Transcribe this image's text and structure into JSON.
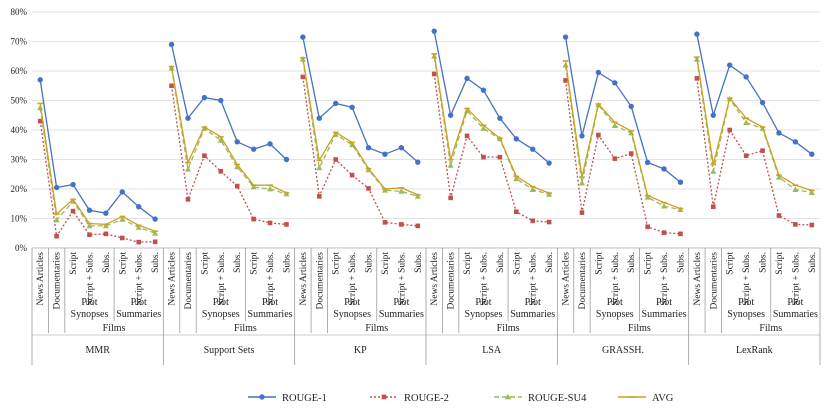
{
  "chart_data": {
    "type": "line",
    "title": "",
    "xlabel": "",
    "ylabel": "",
    "ylim": [
      0,
      80
    ],
    "yticks": [
      "0%",
      "10%",
      "20%",
      "30%",
      "40%",
      "50%",
      "60%",
      "70%",
      "80%"
    ],
    "grid": true,
    "legend_position": "bottom",
    "methods": [
      "MMR",
      "Support Sets",
      "KP",
      "LSA",
      "GRASSH.",
      "LexRank"
    ],
    "films_label": "Films",
    "categories": [
      {
        "top": "News Articles",
        "sub": [
          ""
        ]
      },
      {
        "top": "Documentaries",
        "sub": [
          ""
        ]
      },
      {
        "top": "Plot Synopses",
        "sub": [
          "Script",
          "Script + Subs.",
          "Subs."
        ]
      },
      {
        "top": "Plot Summaries",
        "sub": [
          "Script",
          "Script + Subs.",
          "Subs."
        ]
      }
    ],
    "series": [
      {
        "name": "ROUGE-1",
        "color": "#4472c4",
        "values": [
          [
            57,
            20.5,
            21.5,
            12.8,
            11.8,
            19,
            14,
            9.8
          ],
          [
            69,
            44,
            51,
            50,
            36,
            33.5,
            35.3,
            30
          ],
          [
            71.5,
            44,
            49,
            47.7,
            34,
            31.8,
            34,
            29.1
          ],
          [
            73.5,
            45,
            57.5,
            53.5,
            44,
            37,
            33.5,
            28.8
          ],
          [
            71.5,
            38,
            59.5,
            56,
            48,
            29,
            26.8,
            22.3
          ],
          [
            72.5,
            45,
            62,
            58,
            49.3,
            39,
            36,
            31.8
          ]
        ]
      },
      {
        "name": "ROUGE-2",
        "color": "#c0504d",
        "values": [
          [
            43,
            4,
            12.5,
            4.5,
            4.8,
            3.4,
            2,
            2.1
          ],
          [
            55,
            16.5,
            31.3,
            26,
            21,
            9.8,
            8.5,
            8
          ],
          [
            58,
            17.5,
            30,
            24.7,
            20.2,
            8.7,
            8,
            7.5
          ],
          [
            59,
            17,
            38,
            30.8,
            30.8,
            12.3,
            9.2,
            8.8
          ],
          [
            56.8,
            12,
            38.3,
            30.3,
            32,
            7.2,
            5.2,
            4.8
          ],
          [
            57.5,
            14,
            40,
            31.3,
            33,
            11,
            8,
            7.8
          ]
        ]
      },
      {
        "name": "ROUGE-SU4",
        "color": "#9bbb59",
        "values": [
          [
            47.5,
            9.5,
            15.8,
            7.5,
            7.5,
            9.7,
            7,
            5
          ],
          [
            61,
            26.7,
            40.5,
            36.5,
            27.5,
            20.7,
            20,
            18.3
          ],
          [
            64,
            27.2,
            38.5,
            35,
            26.5,
            19.6,
            19.2,
            17.5
          ],
          [
            65,
            28,
            46.5,
            40.5,
            37,
            23.5,
            19.8,
            18.2
          ],
          [
            62,
            22,
            48.5,
            41.5,
            39,
            17.2,
            14.2,
            13
          ],
          [
            64,
            26,
            50.5,
            42.5,
            40.5,
            24,
            19.8,
            18.8
          ]
        ]
      },
      {
        "name": "AVG",
        "color": "#c9a227",
        "values": [
          [
            49,
            11.5,
            16.5,
            8.3,
            8,
            10.7,
            7.7,
            5.7
          ],
          [
            61.5,
            29,
            41,
            37.7,
            28.3,
            21.3,
            21.3,
            18.7
          ],
          [
            64.5,
            29.7,
            39.2,
            35.8,
            26.9,
            20,
            20.4,
            18
          ],
          [
            65.8,
            30,
            47.3,
            41.6,
            37.2,
            24.3,
            20.8,
            18.6
          ],
          [
            63.4,
            24,
            48.8,
            42.6,
            39.7,
            17.8,
            15.4,
            13.4
          ],
          [
            64.7,
            28.3,
            50.8,
            44,
            41,
            24.7,
            21.3,
            19.5
          ]
        ]
      }
    ]
  }
}
